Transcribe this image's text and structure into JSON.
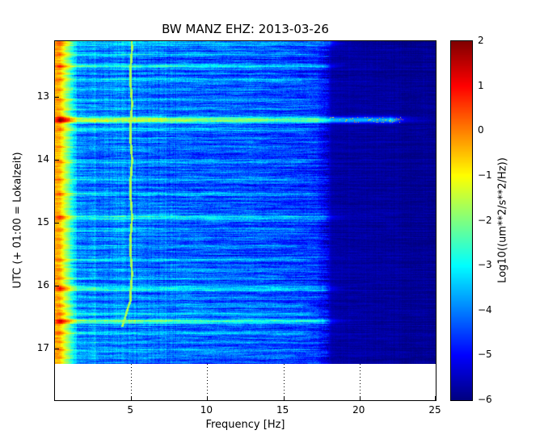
{
  "chart_data": {
    "type": "heatmap",
    "subtype": "spectrogram",
    "title": "BW MANZ EHZ: 2013-03-26",
    "xlabel": "Frequency [Hz]",
    "ylabel": "UTC (+ 01:00 = Lokalzeit)",
    "x_range": [
      0,
      25
    ],
    "xticks": [
      5,
      10,
      15,
      20,
      25
    ],
    "grid_xticks": [
      5,
      10,
      15,
      20
    ],
    "grid_linestyle": "dotted",
    "y_axis_range": [
      12.12,
      17.82
    ],
    "y_data_range": [
      12.12,
      17.245
    ],
    "yticks": [
      13,
      14,
      15,
      16,
      17
    ],
    "colormap": "jet",
    "colorbar": {
      "label": "Log10((um**2/s**2/Hz))",
      "ticks": [
        2,
        1,
        0,
        -1,
        -2,
        -3,
        -4,
        -5,
        -6
      ],
      "vmin": -6,
      "vmax": 2
    },
    "features": {
      "seed": 1337,
      "base_profile": [
        [
          0,
          -0.4
        ],
        [
          0.3,
          -0.5
        ],
        [
          1.5,
          -4.0
        ],
        [
          8,
          -4.3
        ],
        [
          17.2,
          -4.6
        ],
        [
          18.3,
          -5.7
        ],
        [
          25,
          -5.85
        ]
      ],
      "noise": {
        "row": 0.4,
        "coarse": 0.5,
        "fine": 0.35
      },
      "dark_above_hz": 18,
      "vertical_line": {
        "f": 5.0,
        "t_end": 16.66,
        "bend_t": 16.25,
        "bend_rate": 1.55,
        "value": -1.7
      },
      "events": [
        {
          "t": 12.14,
          "amp": 1.2,
          "w": 0.05,
          "fmax": 18
        },
        {
          "t": 12.33,
          "amp": 1.0,
          "w": 0.02,
          "fmax": 16
        },
        {
          "t": 12.52,
          "amp": 1.5,
          "w": 0.025,
          "fmax": 17.5
        },
        {
          "t": 12.63,
          "amp": 0.7,
          "w": 0.015,
          "fmax": 14
        },
        {
          "t": 12.73,
          "amp": 0.9,
          "w": 0.02,
          "fmax": 16
        },
        {
          "t": 12.9,
          "amp": 0.6,
          "w": 0.015,
          "fmax": 15
        },
        {
          "t": 13.06,
          "amp": 0.8,
          "w": 0.02,
          "fmax": 16
        },
        {
          "t": 13.2,
          "amp": 0.6,
          "w": 0.015,
          "fmax": 15
        },
        {
          "t": 13.37,
          "amp": 2.9,
          "w": 0.035,
          "fmax": 22,
          "speckles": true
        },
        {
          "t": 13.52,
          "amp": 0.9,
          "w": 0.02,
          "fmax": 16
        },
        {
          "t": 13.66,
          "amp": 0.6,
          "w": 0.015,
          "fmax": 14
        },
        {
          "t": 13.8,
          "amp": 0.7,
          "w": 0.015,
          "fmax": 15
        },
        {
          "t": 14.05,
          "amp": 0.8,
          "w": 0.02,
          "fmax": 16
        },
        {
          "t": 14.2,
          "amp": 0.6,
          "w": 0.015,
          "fmax": 14
        },
        {
          "t": 14.32,
          "amp": 0.7,
          "w": 0.02,
          "fmax": 15
        },
        {
          "t": 14.55,
          "amp": 1.0,
          "w": 0.02,
          "fmax": 16.5
        },
        {
          "t": 14.7,
          "amp": 0.6,
          "w": 0.015,
          "fmax": 14
        },
        {
          "t": 14.92,
          "amp": 1.6,
          "w": 0.025,
          "fmax": 17.5
        },
        {
          "t": 15.12,
          "amp": 0.8,
          "w": 0.02,
          "fmax": 15.5
        },
        {
          "t": 15.27,
          "amp": 0.6,
          "w": 0.015,
          "fmax": 14
        },
        {
          "t": 15.38,
          "amp": 0.8,
          "w": 0.02,
          "fmax": 15.5
        },
        {
          "t": 15.6,
          "amp": 0.9,
          "w": 0.02,
          "fmax": 16
        },
        {
          "t": 15.75,
          "amp": 0.7,
          "w": 0.015,
          "fmax": 15
        },
        {
          "t": 15.88,
          "amp": 0.7,
          "w": 0.015,
          "fmax": 15
        },
        {
          "t": 16.05,
          "amp": 1.8,
          "w": 0.03,
          "fmax": 17.5
        },
        {
          "t": 16.2,
          "amp": 0.7,
          "w": 0.015,
          "fmax": 15
        },
        {
          "t": 16.32,
          "amp": 0.9,
          "w": 0.02,
          "fmax": 16
        },
        {
          "t": 16.45,
          "amp": 1.1,
          "w": 0.02,
          "fmax": 16.5
        },
        {
          "t": 16.57,
          "amp": 2.2,
          "w": 0.03,
          "fmax": 17.5
        },
        {
          "t": 16.75,
          "amp": 0.9,
          "w": 0.02,
          "fmax": 16
        },
        {
          "t": 16.9,
          "amp": 0.7,
          "w": 0.015,
          "fmax": 15
        },
        {
          "t": 17.02,
          "amp": 0.9,
          "w": 0.02,
          "fmax": 16
        },
        {
          "t": 17.15,
          "amp": 0.7,
          "w": 0.015,
          "fmax": 15
        }
      ]
    }
  }
}
